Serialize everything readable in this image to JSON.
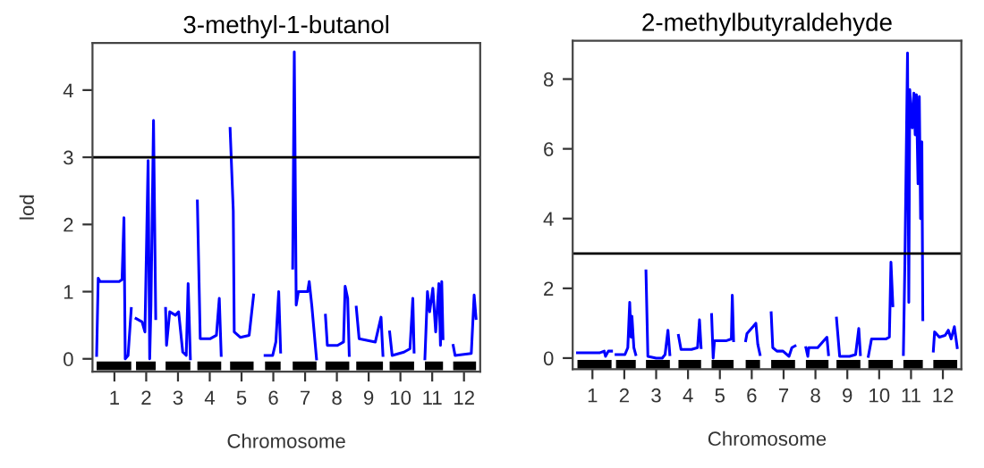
{
  "chart_data": [
    {
      "type": "line",
      "title": "3-methyl-1-butanol",
      "xlabel": "Chromosome",
      "ylabel": "lod",
      "xlim": [
        0.31,
        12.51
      ],
      "ylim": [
        -0.19,
        4.7
      ],
      "yticks": [
        0,
        1,
        2,
        3,
        4
      ],
      "xticks": [
        1,
        2,
        3,
        4,
        5,
        6,
        7,
        8,
        9,
        10,
        11,
        12
      ],
      "grid": false,
      "legend": false,
      "ref_lines": [
        {
          "axis": "y",
          "value": 3.0,
          "color": "#000000"
        }
      ],
      "series": [
        {
          "color": "#0000ff",
          "x": [
            0.44,
            0.49,
            0.55,
            1.15,
            1.24,
            1.3,
            1.34,
            1.43,
            1.53,
            1.6,
            1.68,
            1.87,
            1.96,
            2.06,
            2.11,
            2.15,
            2.23,
            2.3,
            2.5,
            2.61,
            2.64,
            2.74,
            2.92,
            3.02,
            3.15,
            3.26,
            3.32,
            3.39,
            3.5,
            3.61,
            3.7,
            4.02,
            4.21,
            4.3,
            4.36,
            4.5,
            4.64,
            4.74,
            4.77,
            4.96,
            5.24,
            5.38,
            5.5,
            5.74,
            5.98,
            6.08,
            6.17,
            6.23,
            6.4,
            6.61,
            6.66,
            6.72,
            6.79,
            7.08,
            7.13,
            7.21,
            7.36,
            7.5,
            7.64,
            7.7,
            8.02,
            8.21,
            8.26,
            8.34,
            8.39,
            8.5,
            8.61,
            8.7,
            9.21,
            9.39,
            9.45,
            9.55,
            9.66,
            9.74,
            10.11,
            10.3,
            10.39,
            10.43,
            10.5,
            10.77,
            10.85,
            10.92,
            11.02,
            11.11,
            11.21,
            11.26,
            11.3,
            11.34,
            11.5,
            11.66,
            11.72,
            12.23,
            12.32,
            12.38
          ],
          "values": [
            0.05,
            1.2,
            1.15,
            1.15,
            1.18,
            2.1,
            0.0,
            0.05,
            0.75,
            null,
            0.6,
            0.55,
            0.4,
            2.95,
            0.0,
            0.8,
            3.55,
            0.6,
            null,
            0.75,
            0.2,
            0.7,
            0.65,
            0.7,
            0.1,
            0.05,
            1.12,
            0.0,
            null,
            2.35,
            0.3,
            0.3,
            0.35,
            0.9,
            0.05,
            null,
            3.43,
            2.2,
            0.4,
            0.32,
            0.35,
            0.95,
            null,
            0.05,
            0.05,
            0.25,
            1.0,
            0.1,
            null,
            1.35,
            4.57,
            0.8,
            1.0,
            1.0,
            1.15,
            0.8,
            0.0,
            null,
            0.65,
            0.2,
            0.2,
            0.25,
            1.08,
            0.9,
            0.05,
            null,
            0.77,
            0.3,
            0.25,
            0.62,
            0.05,
            null,
            0.4,
            0.05,
            0.1,
            0.15,
            0.9,
            0.1,
            null,
            0.0,
            1.0,
            0.7,
            1.05,
            0.4,
            1.12,
            0.2,
            1.15,
            0.3,
            null,
            0.2,
            0.05,
            0.08,
            0.95,
            0.6
          ]
        }
      ]
    },
    {
      "type": "line",
      "title": "2-methylbutyraldehyde",
      "xlabel": "Chromosome",
      "xlim": [
        0.38,
        12.58
      ],
      "ylim": [
        -0.32,
        9.1
      ],
      "yticks": [
        0,
        2,
        4,
        6,
        8
      ],
      "xticks": [
        1,
        2,
        3,
        4,
        5,
        6,
        7,
        8,
        9,
        10,
        11,
        12
      ],
      "grid": false,
      "legend": false,
      "ref_lines": [
        {
          "axis": "y",
          "value": 3.0,
          "color": "#000000"
        }
      ],
      "series": [
        {
          "color": "#0000ff",
          "x": [
            0.53,
            0.66,
            1.22,
            1.37,
            1.41,
            1.5,
            1.6,
            1.65,
            1.74,
            2.02,
            2.11,
            2.17,
            2.21,
            2.24,
            2.3,
            2.36,
            2.5,
            2.68,
            2.74,
            3.0,
            3.19,
            3.28,
            3.37,
            3.43,
            3.5,
            3.7,
            3.78,
            4.11,
            4.3,
            4.36,
            4.41,
            4.5,
            4.74,
            4.79,
            4.83,
            5.21,
            5.36,
            5.39,
            5.43,
            5.5,
            5.81,
            5.85,
            6.04,
            6.13,
            6.19,
            6.26,
            6.4,
            6.61,
            6.66,
            6.79,
            6.98,
            7.17,
            7.26,
            7.36,
            7.5,
            7.7,
            7.76,
            7.79,
            8.07,
            8.26,
            8.36,
            8.41,
            8.5,
            8.66,
            8.76,
            9.07,
            9.26,
            9.36,
            9.41,
            9.5,
            9.66,
            9.76,
            10.22,
            10.32,
            10.37,
            10.43,
            10.5,
            10.76,
            10.81,
            10.89,
            10.93,
            10.96,
            11.04,
            11.09,
            11.13,
            11.17,
            11.22,
            11.26,
            11.3,
            11.34,
            11.37,
            11.5,
            11.7,
            11.74,
            11.89,
            12.07,
            12.17,
            12.26,
            12.36,
            12.45
          ],
          "values": [
            0.15,
            0.15,
            0.15,
            0.2,
            0.05,
            0.2,
            0.2,
            null,
            0.1,
            0.1,
            0.3,
            1.6,
            0.6,
            1.2,
            0.3,
            0.1,
            null,
            2.5,
            0.05,
            0.0,
            0.0,
            0.1,
            0.8,
            0.1,
            null,
            0.65,
            0.25,
            0.25,
            0.3,
            1.1,
            0.3,
            null,
            1.25,
            0.0,
            0.5,
            0.5,
            0.55,
            1.8,
            0.5,
            null,
            0.5,
            0.7,
            0.9,
            1.0,
            0.4,
            0.1,
            null,
            1.3,
            0.3,
            0.2,
            0.2,
            0.05,
            0.3,
            0.35,
            null,
            0.3,
            0.05,
            0.3,
            0.3,
            0.5,
            0.6,
            0.1,
            null,
            1.15,
            0.05,
            0.05,
            0.1,
            0.85,
            0.1,
            null,
            0.05,
            0.55,
            0.55,
            0.6,
            2.75,
            1.5,
            null,
            0.1,
            2.9,
            8.75,
            1.6,
            7.7,
            6.6,
            7.6,
            6.4,
            7.55,
            5.0,
            7.5,
            4.0,
            6.2,
            1.1,
            null,
            0.2,
            0.75,
            0.6,
            0.65,
            0.8,
            0.55,
            0.9,
            0.3
          ]
        }
      ]
    }
  ]
}
